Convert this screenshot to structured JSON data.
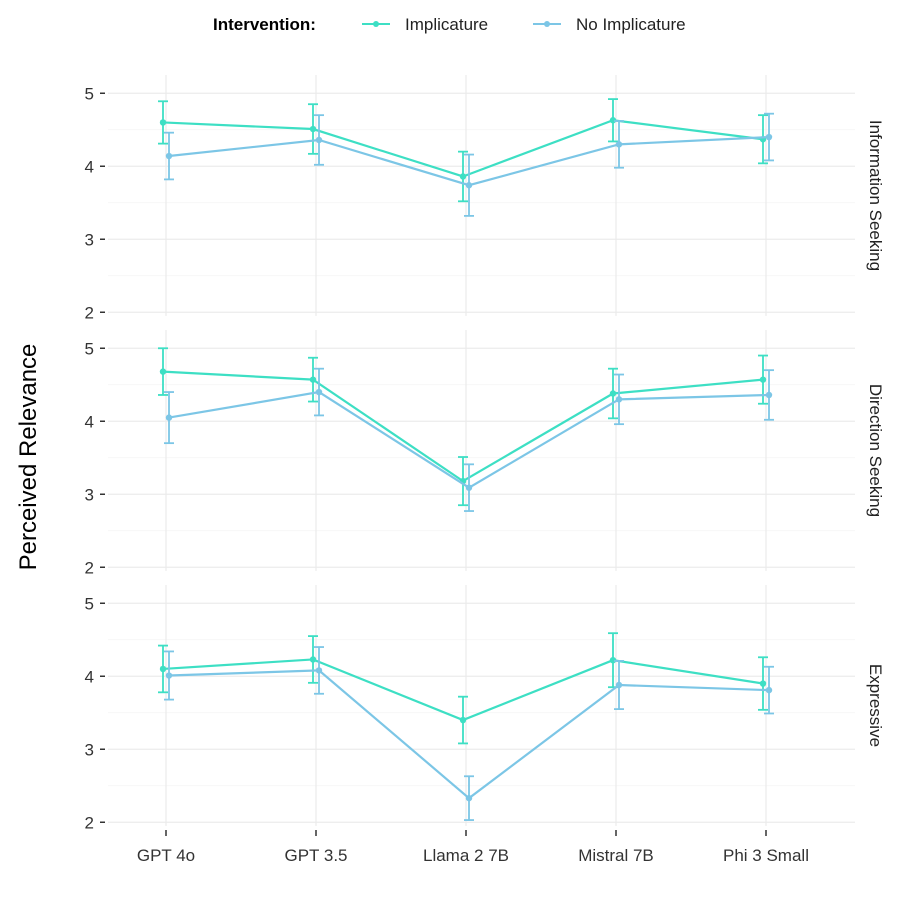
{
  "chart_data": {
    "type": "line",
    "ylabel": "Perceived Relevance",
    "xlabel": "",
    "legend": {
      "title": "Intervention:",
      "placement": "top"
    },
    "categories": [
      "GPT 4o",
      "GPT 3.5",
      "Llama 2 7B",
      "Mistral 7B",
      "Phi 3 Small"
    ],
    "ylim": [
      1.95,
      5.25
    ],
    "yticks": [
      2,
      3,
      4,
      5
    ],
    "grid": true,
    "error_bars": true,
    "series_meta": [
      {
        "name": "Implicature",
        "color": "#3ddfc4"
      },
      {
        "name": "No Implicature",
        "color": "#7cc6e6"
      }
    ],
    "panels": [
      {
        "label": "Information Seeking",
        "series": [
          {
            "name": "Implicature",
            "values": [
              4.6,
              4.51,
              3.86,
              4.63,
              4.37
            ],
            "errors": [
              0.29,
              0.34,
              0.34,
              0.29,
              0.33
            ]
          },
          {
            "name": "No Implicature",
            "values": [
              4.14,
              4.36,
              3.74,
              4.3,
              4.4
            ],
            "errors": [
              0.32,
              0.34,
              0.42,
              0.32,
              0.32
            ]
          }
        ]
      },
      {
        "label": "Direction Seeking",
        "series": [
          {
            "name": "Implicature",
            "values": [
              4.68,
              4.57,
              3.18,
              4.38,
              4.57
            ],
            "errors": [
              0.32,
              0.3,
              0.33,
              0.34,
              0.33
            ]
          },
          {
            "name": "No Implicature",
            "values": [
              4.05,
              4.4,
              3.09,
              4.3,
              4.36
            ],
            "errors": [
              0.35,
              0.32,
              0.32,
              0.34,
              0.34
            ]
          }
        ]
      },
      {
        "label": "Expressive",
        "series": [
          {
            "name": "Implicature",
            "values": [
              4.1,
              4.23,
              3.4,
              4.22,
              3.9
            ],
            "errors": [
              0.32,
              0.32,
              0.32,
              0.37,
              0.36
            ]
          },
          {
            "name": "No Implicature",
            "values": [
              4.01,
              4.08,
              2.33,
              3.88,
              3.81
            ],
            "errors": [
              0.33,
              0.32,
              0.3,
              0.33,
              0.32
            ]
          }
        ]
      }
    ]
  }
}
